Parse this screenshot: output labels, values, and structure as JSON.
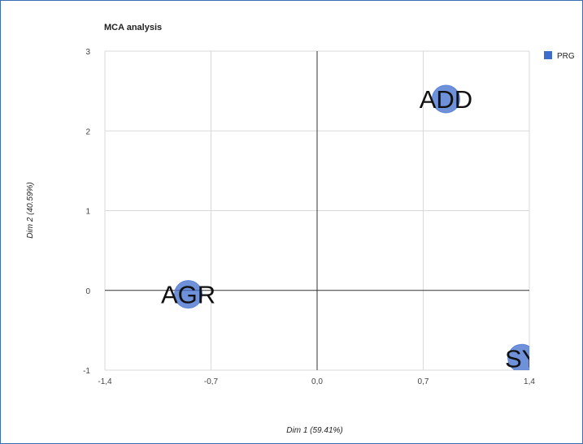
{
  "chart_data": {
    "type": "scatter",
    "title": "MCA analysis",
    "xlabel": "Dim 1 (59.41%)",
    "ylabel": "Dim 2 (40.59%)",
    "xlim": [
      -1.4,
      1.4
    ],
    "ylim": [
      -1,
      3
    ],
    "x_ticks": [
      "-1,4",
      "-0,7",
      "0,0",
      "0,7",
      "1,4"
    ],
    "y_ticks": [
      "3",
      "2",
      "1",
      "0",
      "-1"
    ],
    "grid": true,
    "legend_position": "right",
    "series": [
      {
        "name": "PRG",
        "color": "#3d6ccc",
        "points": [
          {
            "label": "ADD",
            "x": 0.85,
            "y": 2.4
          },
          {
            "label": "AGR",
            "x": -0.85,
            "y": -0.05
          },
          {
            "label": "SY",
            "x": 1.35,
            "y": -0.85
          }
        ]
      }
    ]
  }
}
